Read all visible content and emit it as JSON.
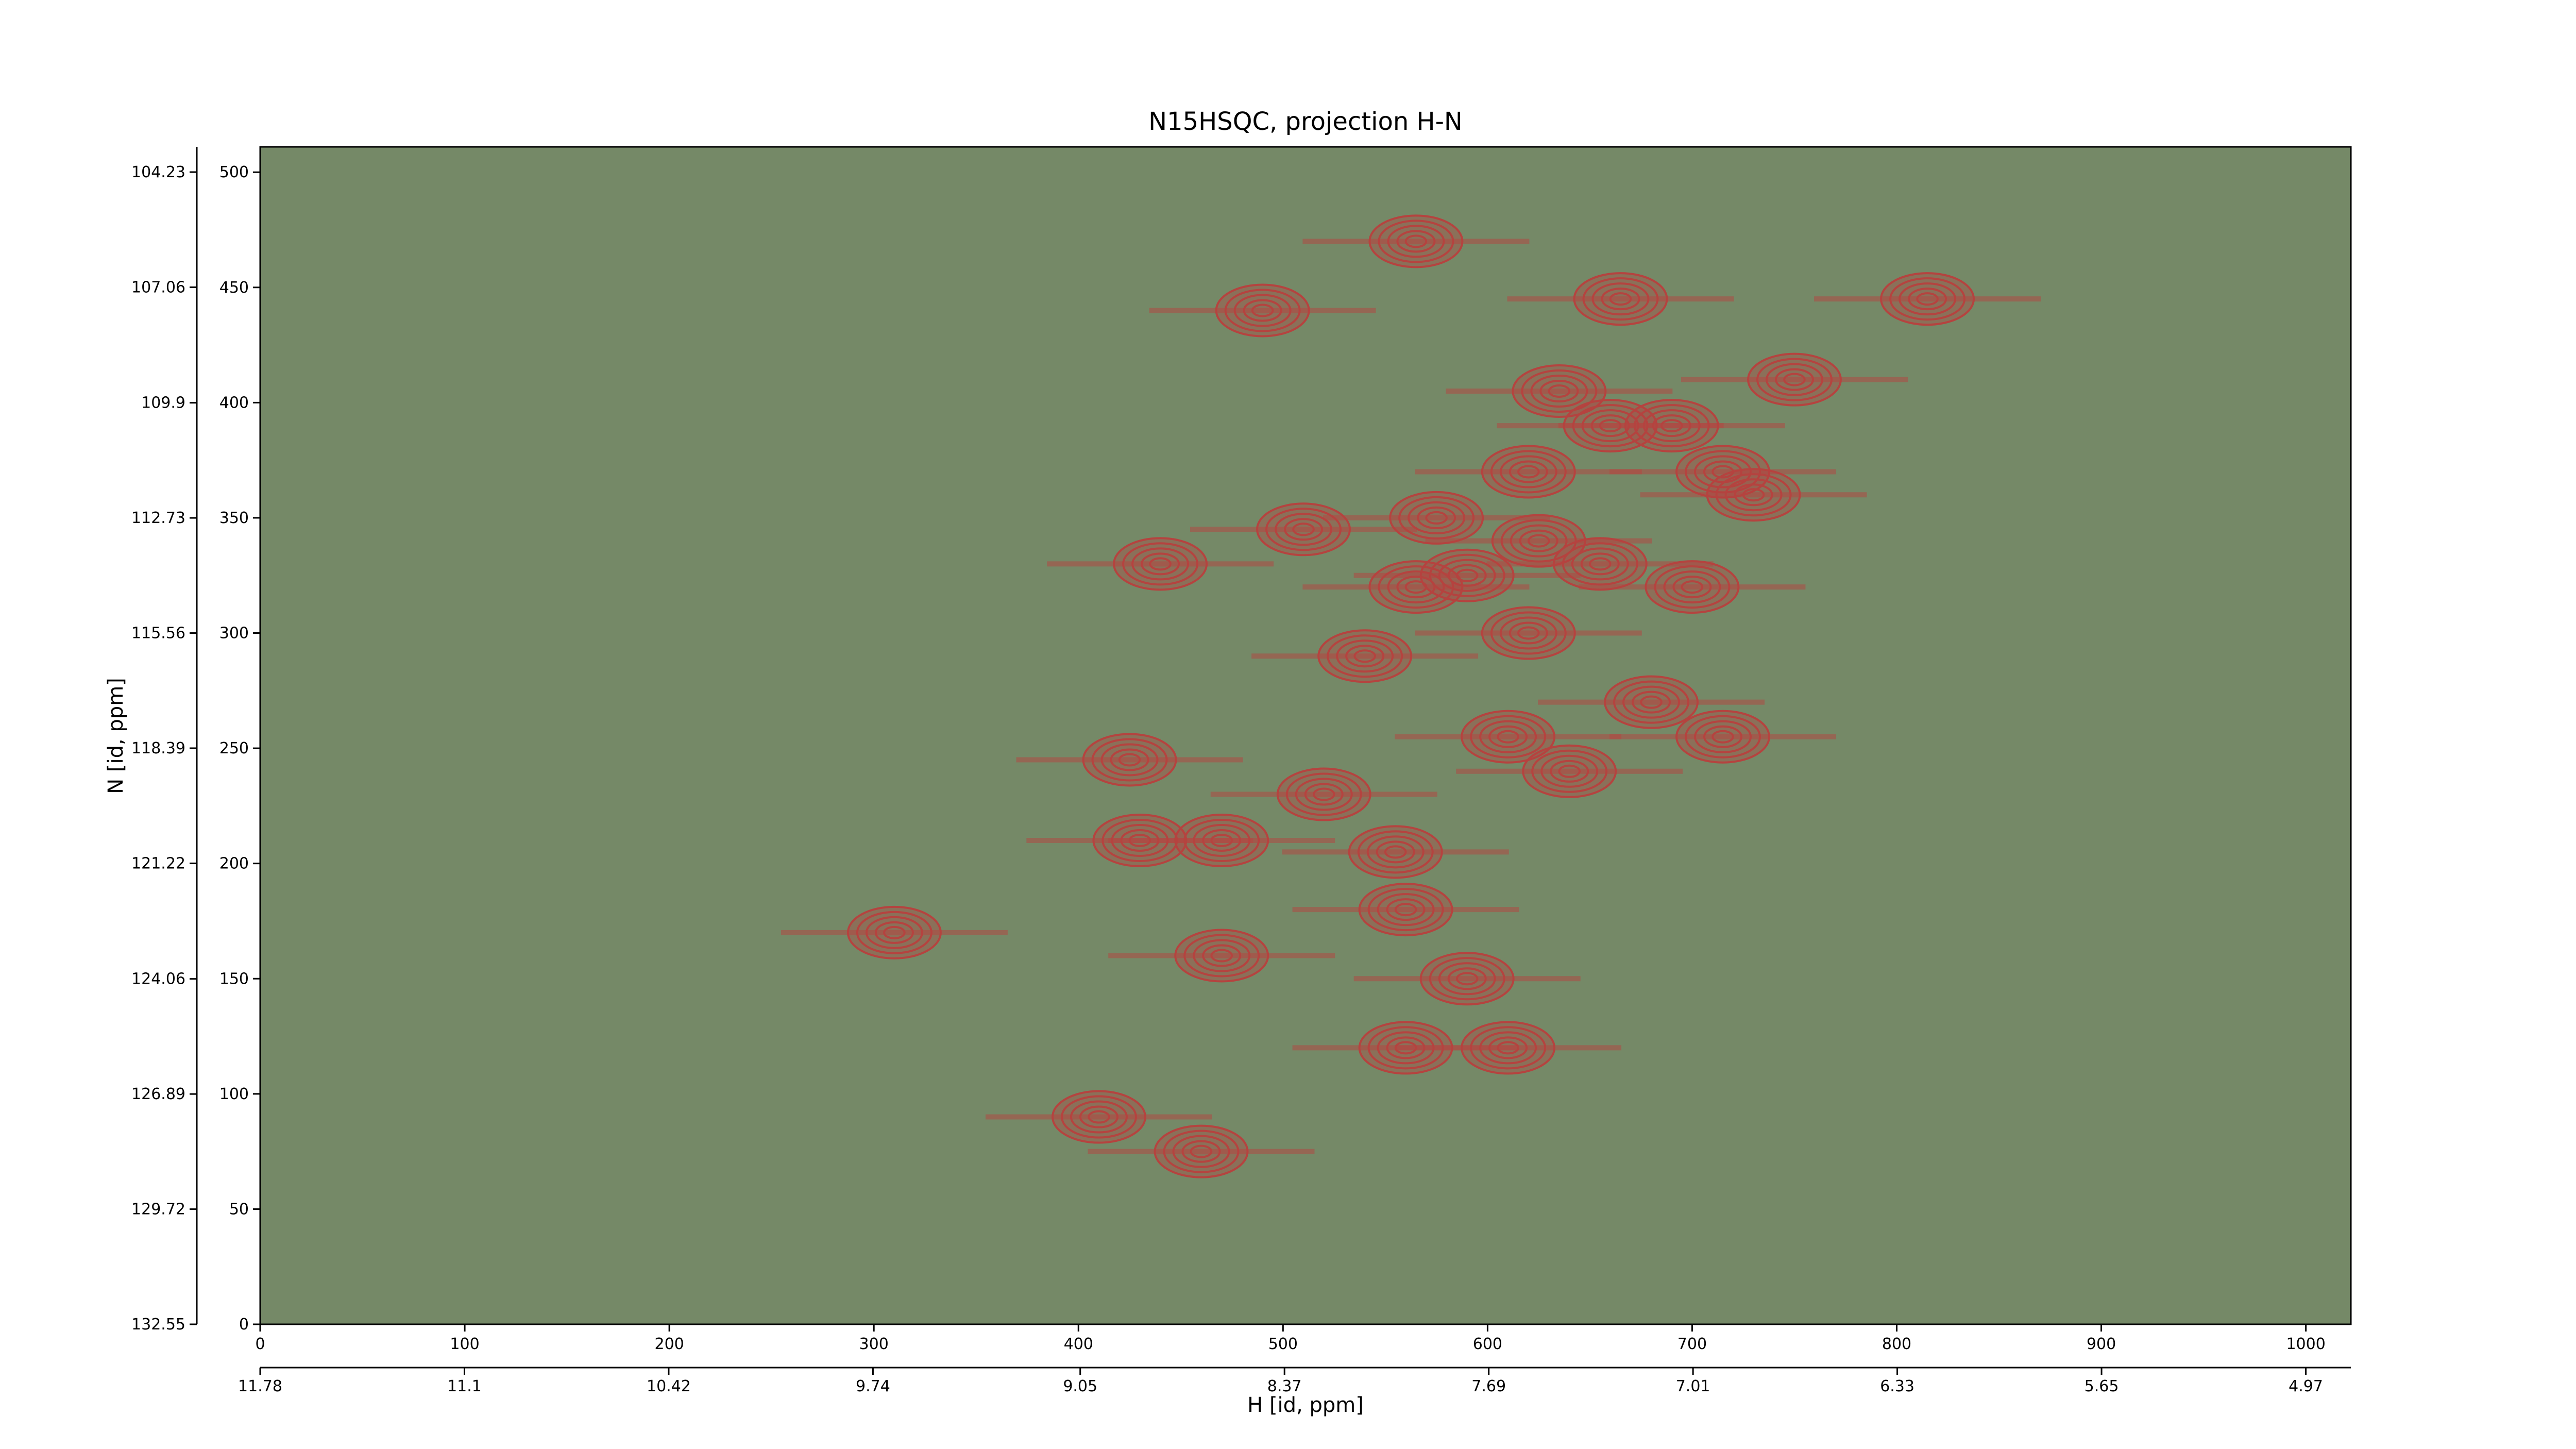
{
  "chart_data": {
    "type": "contour",
    "title": "N15HSQC, projection H-N",
    "xlabel": "H [id, ppm]",
    "ylabel": "N [id, ppm]",
    "xlim": [
      0,
      1022
    ],
    "xticks": [
      0,
      100,
      200,
      300,
      400,
      500,
      600,
      700,
      800,
      900,
      1000
    ],
    "x2lim": [
      11.78,
      4.82
    ],
    "x2ticks": [
      11.78,
      11.1,
      10.42,
      9.74,
      9.05,
      8.37,
      7.69,
      7.01,
      6.33,
      5.65,
      4.97
    ],
    "ylim": [
      0,
      511
    ],
    "yticks": [
      0,
      50,
      100,
      150,
      200,
      250,
      300,
      350,
      400,
      450,
      500
    ],
    "y2lim": [
      132.55,
      103.61
    ],
    "y2ticks": [
      132.55,
      129.72,
      126.89,
      124.06,
      121.22,
      118.39,
      115.56,
      112.73,
      109.9,
      107.06,
      104.23
    ],
    "positive_color": "#b5433f",
    "negative_color": "#3f9a62",
    "peaks": {
      "x": [
        565,
        490,
        665,
        815,
        635,
        750,
        660,
        690,
        715,
        620,
        730,
        510,
        575,
        625,
        590,
        655,
        440,
        565,
        700,
        620,
        540,
        425,
        715,
        610,
        470,
        430,
        555,
        310,
        560,
        470,
        590,
        610,
        560,
        410,
        460,
        640,
        520,
        680
      ],
      "y": [
        470,
        440,
        445,
        445,
        405,
        410,
        390,
        390,
        370,
        370,
        360,
        345,
        350,
        340,
        325,
        330,
        330,
        320,
        320,
        300,
        290,
        245,
        255,
        255,
        210,
        210,
        205,
        170,
        180,
        160,
        150,
        120,
        120,
        90,
        75,
        240,
        230,
        270
      ]
    }
  }
}
